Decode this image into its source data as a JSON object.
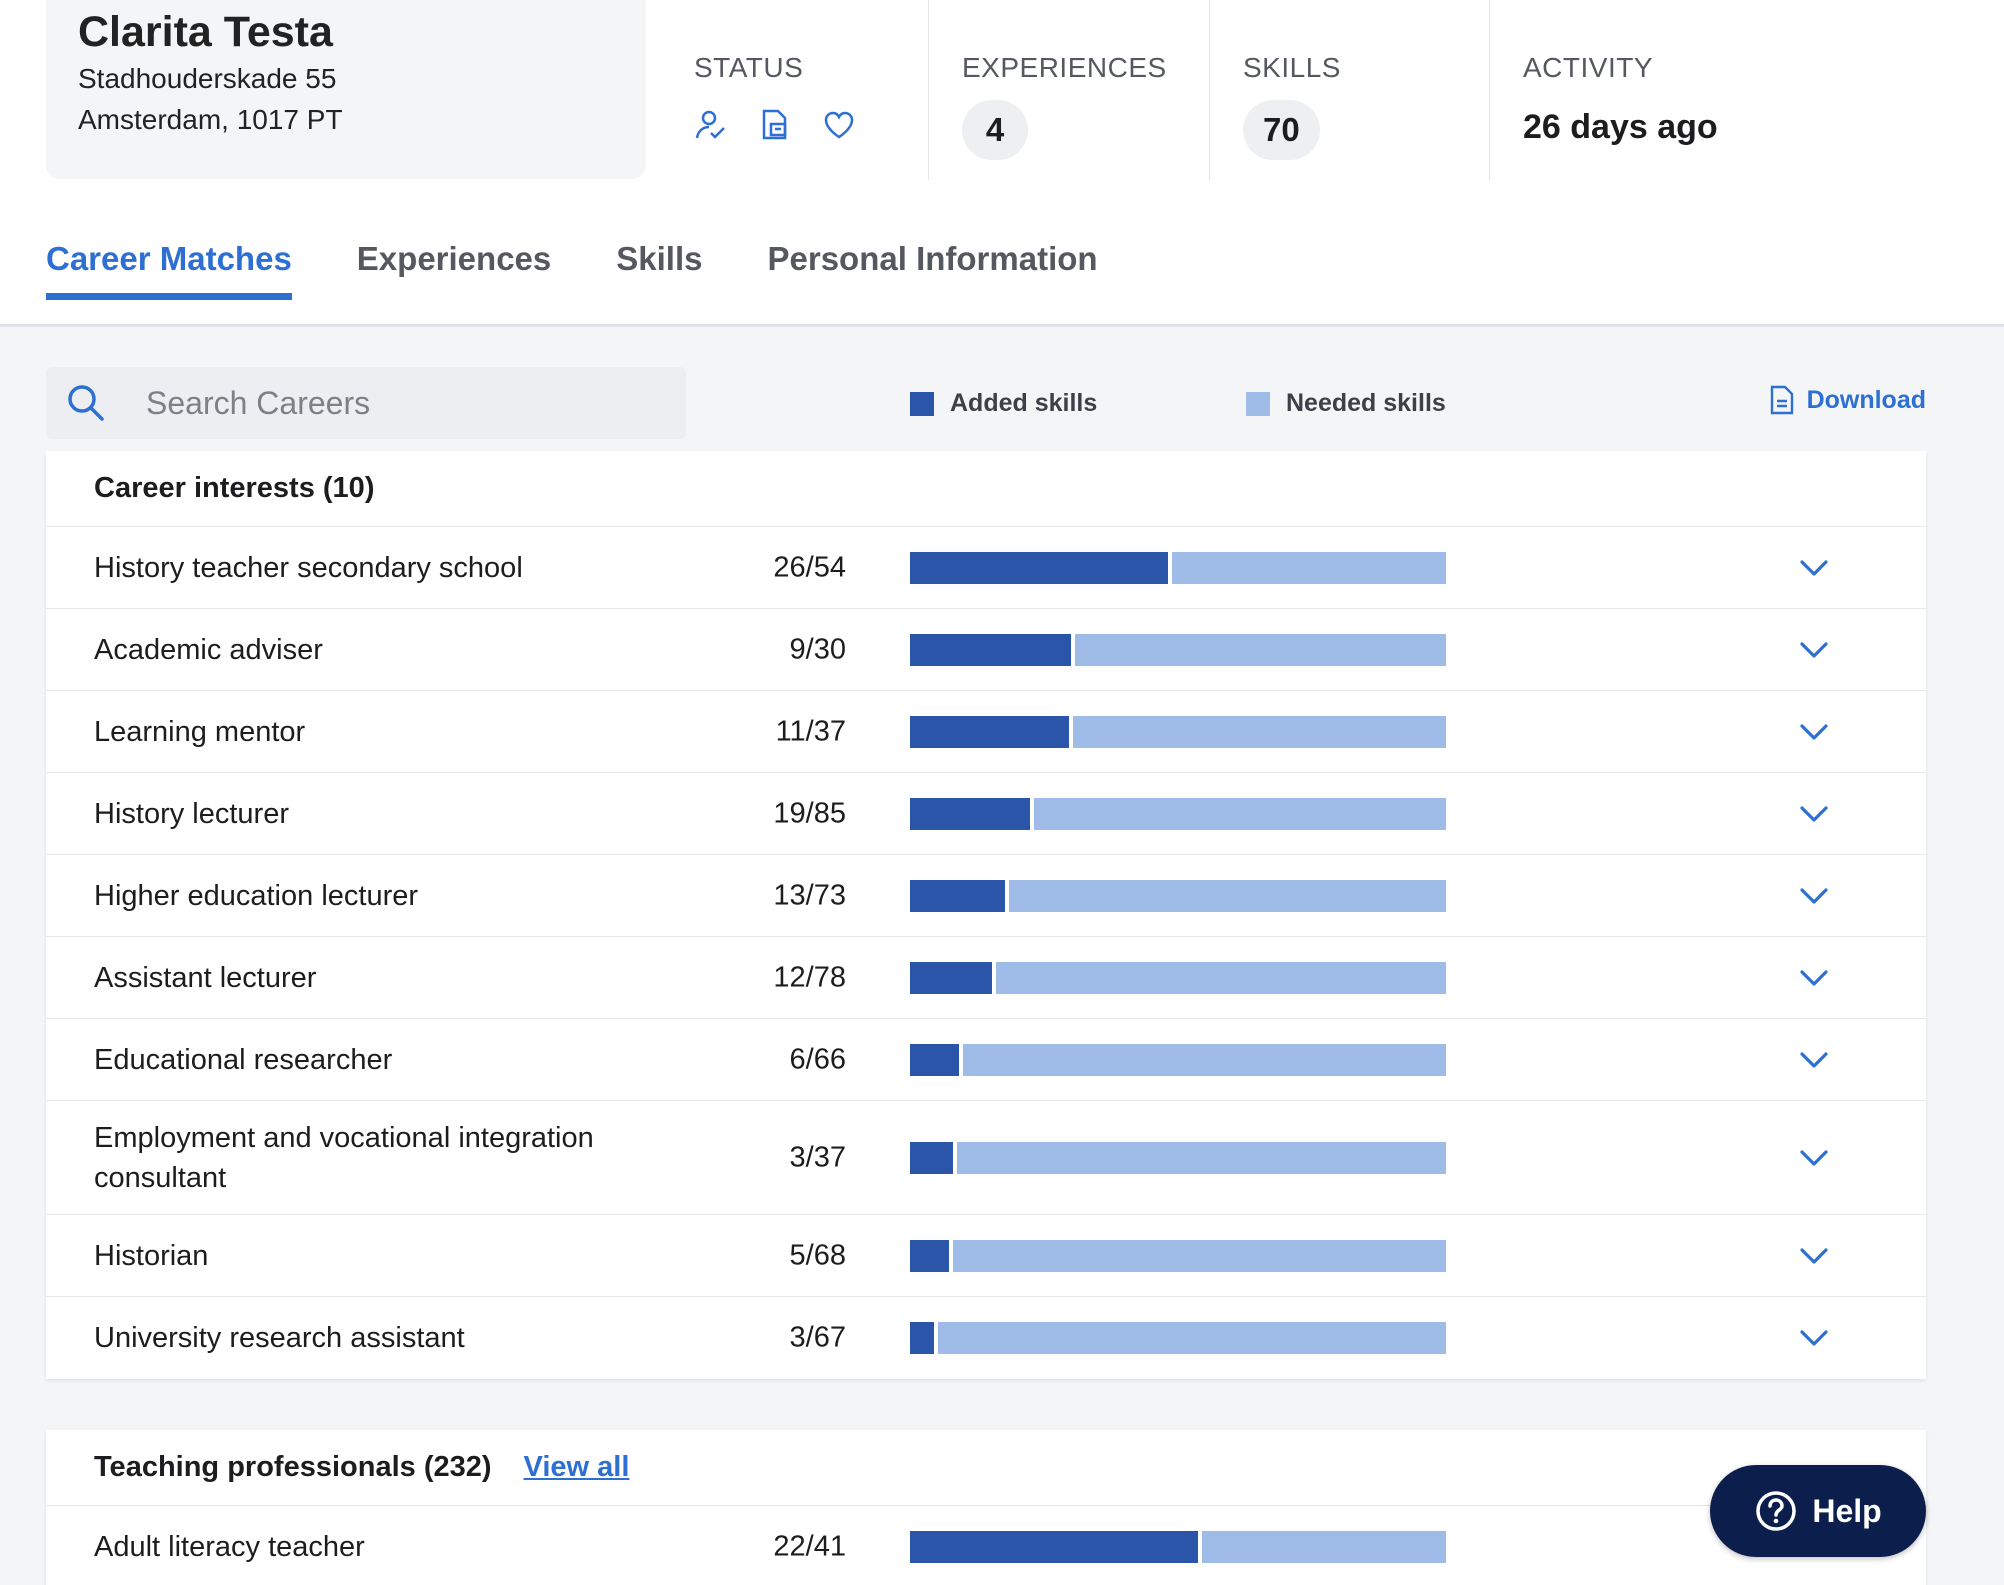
{
  "profile": {
    "name": "Clarita Testa",
    "address_line1": "Stadhouderskade 55",
    "address_line2": "Amsterdam, 1017 PT"
  },
  "stats": {
    "status_label": "STATUS",
    "status_icons": [
      "person-check-icon",
      "document-icon",
      "heart-icon"
    ],
    "experiences_label": "EXPERIENCES",
    "experiences_value": "4",
    "skills_label": "SKILLS",
    "skills_value": "70",
    "activity_label": "ACTIVITY",
    "activity_value": "26 days ago"
  },
  "tabs": [
    {
      "label": "Career Matches",
      "active": true
    },
    {
      "label": "Experiences",
      "active": false
    },
    {
      "label": "Skills",
      "active": false
    },
    {
      "label": "Personal Information",
      "active": false
    }
  ],
  "toolbar": {
    "search_placeholder": "Search Careers",
    "legend_added": "Added skills",
    "legend_needed": "Needed skills",
    "download_label": "Download"
  },
  "colors": {
    "accent": "#2d6fd2",
    "added": "#2a55a8",
    "needed": "#9fbbe8",
    "help_bg": "#0c1e4c"
  },
  "career_interests": {
    "heading": "Career interests (10)",
    "rows": [
      {
        "title": "History teacher secondary school",
        "ratio": "26/54",
        "added": 26,
        "total": 54
      },
      {
        "title": "Academic adviser",
        "ratio": "9/30",
        "added": 9,
        "total": 30
      },
      {
        "title": "Learning mentor",
        "ratio": "11/37",
        "added": 11,
        "total": 37
      },
      {
        "title": "History lecturer",
        "ratio": "19/85",
        "added": 19,
        "total": 85
      },
      {
        "title": "Higher education lecturer",
        "ratio": "13/73",
        "added": 13,
        "total": 73
      },
      {
        "title": "Assistant lecturer",
        "ratio": "12/78",
        "added": 12,
        "total": 78
      },
      {
        "title": "Educational researcher",
        "ratio": "6/66",
        "added": 6,
        "total": 66
      },
      {
        "title": "Employment and vocational integration consultant",
        "ratio": "3/37",
        "added": 3,
        "total": 37
      },
      {
        "title": "Historian",
        "ratio": "5/68",
        "added": 5,
        "total": 68
      },
      {
        "title": "University research assistant",
        "ratio": "3/67",
        "added": 3,
        "total": 67
      }
    ]
  },
  "teaching_professionals": {
    "heading": "Teaching professionals (232)",
    "view_all": "View all",
    "rows": [
      {
        "title": "Adult literacy teacher",
        "ratio": "22/41",
        "added": 22,
        "total": 41
      }
    ]
  },
  "help": {
    "label": "Help"
  }
}
